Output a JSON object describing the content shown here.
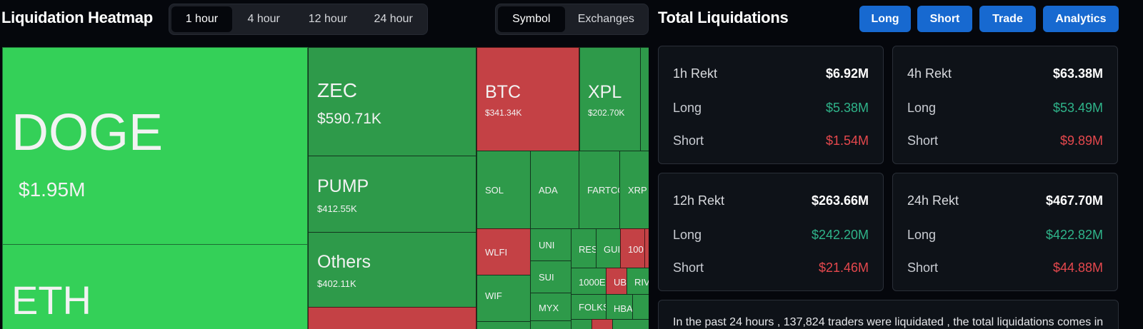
{
  "heatmap": {
    "title": "Liquidation Heatmap",
    "timeframes": [
      "1 hour",
      "4 hour",
      "12 hour",
      "24 hour"
    ],
    "view_modes": [
      "Symbol",
      "Exchanges"
    ],
    "tiles": [
      {
        "symbol": "DOGE",
        "value": "$1.95M",
        "color": "#34d058"
      },
      {
        "symbol": "ETH",
        "value": "",
        "color": "#34d058"
      },
      {
        "symbol": "ZEC",
        "value": "$590.71K",
        "color": "#2e9a4a"
      },
      {
        "symbol": "PUMP",
        "value": "$412.55K",
        "color": "#2e9a4a"
      },
      {
        "symbol": "Others",
        "value": "$402.11K",
        "color": "#2e9a4a"
      },
      {
        "symbol": "BTC",
        "value": "$341.34K",
        "color": "#c44145"
      },
      {
        "symbol": "XPL",
        "value": "$202.70K",
        "color": "#2e9a4a"
      },
      {
        "symbol": "SOL",
        "value": "",
        "color": "#2e9a4a"
      },
      {
        "symbol": "ADA",
        "value": "",
        "color": "#2e9a4a"
      },
      {
        "symbol": "FARTCO",
        "value": "",
        "color": "#2e9a4a"
      },
      {
        "symbol": "XRP",
        "value": "",
        "color": "#2e9a4a"
      },
      {
        "symbol": "WLFI",
        "value": "",
        "color": "#c44145"
      },
      {
        "symbol": "UNI",
        "value": "",
        "color": "#2e9a4a"
      },
      {
        "symbol": "RES",
        "value": "",
        "color": "#2e9a4a"
      },
      {
        "symbol": "GUI",
        "value": "",
        "color": "#2e9a4a"
      },
      {
        "symbol": "100",
        "value": "",
        "color": "#c44145"
      },
      {
        "symbol": "SUI",
        "value": "",
        "color": "#2e9a4a"
      },
      {
        "symbol": "1000E",
        "value": "",
        "color": "#2e9a4a"
      },
      {
        "symbol": "UB",
        "value": "",
        "color": "#c44145"
      },
      {
        "symbol": "RIV",
        "value": "",
        "color": "#2e9a4a"
      },
      {
        "symbol": "WIF",
        "value": "",
        "color": "#2e9a4a"
      },
      {
        "symbol": "MYX",
        "value": "",
        "color": "#2e9a4a"
      },
      {
        "symbol": "FOLKS",
        "value": "",
        "color": "#2e9a4a"
      },
      {
        "symbol": "HBA",
        "value": "",
        "color": "#2e9a4a"
      }
    ]
  },
  "liquidations": {
    "title": "Total Liquidations",
    "buttons": [
      "Long",
      "Short",
      "Trade",
      "Analytics"
    ],
    "cards": [
      {
        "label": "1h Rekt",
        "total": "$6.92M",
        "long_label": "Long",
        "long": "$5.38M",
        "short_label": "Short",
        "short": "$1.54M"
      },
      {
        "label": "4h Rekt",
        "total": "$63.38M",
        "long_label": "Long",
        "long": "$53.49M",
        "short_label": "Short",
        "short": "$9.89M"
      },
      {
        "label": "12h Rekt",
        "total": "$263.66M",
        "long_label": "Long",
        "long": "$242.20M",
        "short_label": "Short",
        "short": "$21.46M"
      },
      {
        "label": "24h Rekt",
        "total": "$467.70M",
        "long_label": "Long",
        "long": "$422.82M",
        "short_label": "Short",
        "short": "$44.88M"
      }
    ],
    "summary": "In the past 24 hours , 137,824 traders were liquidated , the total liquidations comes in"
  },
  "colors": {
    "accent_blue": "#1769d0",
    "long_green": "#2fb48a",
    "short_red": "#e5484d"
  }
}
